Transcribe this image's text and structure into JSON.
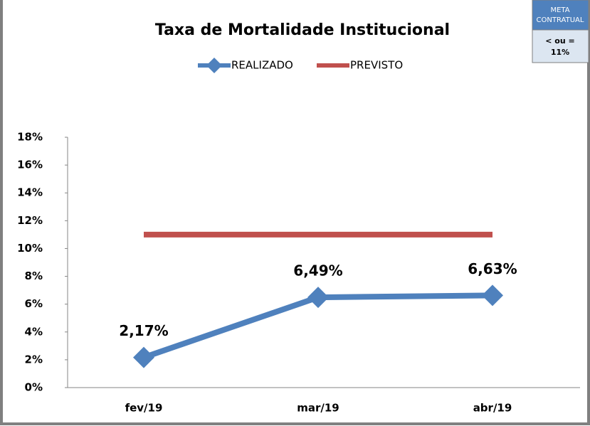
{
  "chart_data": {
    "type": "line",
    "title": "Taxa de Mortalidade Institucional",
    "categories": [
      "fev/19",
      "mar/19",
      "abr/19"
    ],
    "series": [
      {
        "name": "REALIZADO",
        "color": "#4f81bd",
        "values": [
          2.17,
          6.49,
          6.63
        ],
        "value_labels": [
          "2,17%",
          "6,49%",
          "6,63%"
        ],
        "marker": "diamond"
      },
      {
        "name": "PREVISTO",
        "color": "#c0504d",
        "values": [
          11,
          11,
          11
        ]
      }
    ],
    "ylim": [
      0,
      18
    ],
    "yticks": [
      {
        "value": 0,
        "label": "0%"
      },
      {
        "value": 2,
        "label": "2%"
      },
      {
        "value": 4,
        "label": "4%"
      },
      {
        "value": 6,
        "label": "6%"
      },
      {
        "value": 8,
        "label": "8%"
      },
      {
        "value": 10,
        "label": "10%"
      },
      {
        "value": 12,
        "label": "12%"
      },
      {
        "value": 14,
        "label": "14%"
      },
      {
        "value": 16,
        "label": "16%"
      },
      {
        "value": 18,
        "label": "18%"
      }
    ],
    "grid": false,
    "legend": "top",
    "meta_box": {
      "header": [
        "META",
        "CONTRATUAL"
      ],
      "body": [
        "< ou =",
        "11%"
      ]
    }
  }
}
